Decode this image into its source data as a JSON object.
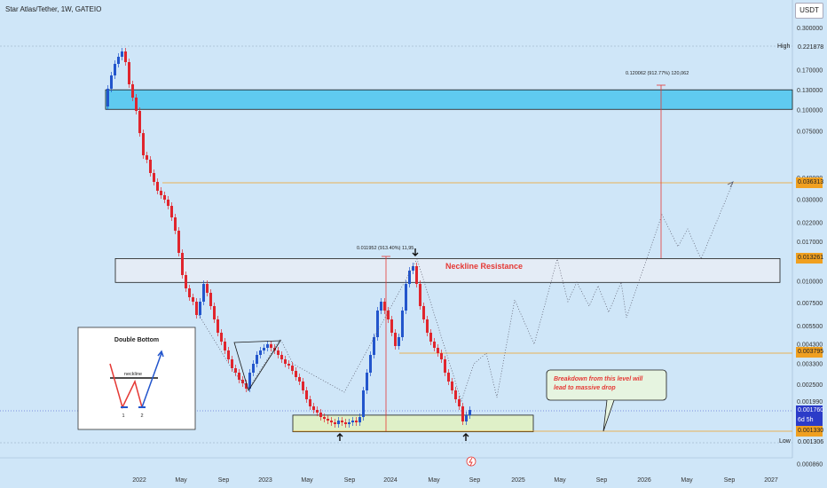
{
  "header": {
    "title": "Star Atlas/Tether, 1W, GATEIO",
    "currency": "USDT"
  },
  "chart_data": {
    "type": "candlestick",
    "y_scale": "log",
    "y_ticks": [
      "0.300000",
      "0.170000",
      "0.130000",
      "0.100000",
      "0.075000",
      "0.040000",
      "0.030000",
      "0.022000",
      "0.017000",
      "0.010000",
      "0.007500",
      "0.005500",
      "0.004300",
      "0.003300",
      "0.002500",
      "0.001990",
      "0.000860"
    ],
    "x_ticks": [
      "2022",
      "May",
      "Sep",
      "2023",
      "May",
      "Sep",
      "2024",
      "May",
      "Sep",
      "2025",
      "May",
      "Sep",
      "2026",
      "May",
      "Sep",
      "2027"
    ],
    "price_tags": [
      {
        "label": "High",
        "value": "0.221878",
        "kind": "high"
      },
      {
        "label": "",
        "value": "0.036313",
        "kind": "orange"
      },
      {
        "label": "",
        "value": "0.013261",
        "kind": "orange"
      },
      {
        "label": "",
        "value": "0.003795",
        "kind": "orange"
      },
      {
        "label": "",
        "value": "0.001760",
        "sub": "6d 5h",
        "kind": "current"
      },
      {
        "label": "",
        "value": "0.001330",
        "kind": "orange"
      },
      {
        "label": "Low",
        "value": "0.001306",
        "kind": "low"
      }
    ],
    "horizontal_levels": [
      0.036313,
      0.013261,
      0.003795,
      0.00133,
      0.221878
    ],
    "zones": [
      {
        "name": "target-zone",
        "from": 0.1,
        "to": 0.13
      },
      {
        "name": "neckline-zone",
        "from": 0.0098,
        "to": 0.0135
      },
      {
        "name": "bottom-zone",
        "from": 0.00132,
        "to": 0.00165
      }
    ],
    "measurements": [
      {
        "text": "0.120062 (912.77%) 120,062"
      },
      {
        "text": "0.011952 (913.40%) 11,95"
      }
    ],
    "annotations": {
      "neckline": "Neckline Resistance",
      "breakdown": "Breakdown from this level will lead to massive drop"
    },
    "inset": {
      "title": "Double Bottom",
      "neckline": "neckline",
      "labels": [
        "1",
        "2"
      ]
    },
    "colors": {
      "up": "#2255cc",
      "down": "#e0252d",
      "orange": "#f0a020",
      "zone_blue": "#5fcaf0",
      "accent_red": "#e53935"
    }
  }
}
